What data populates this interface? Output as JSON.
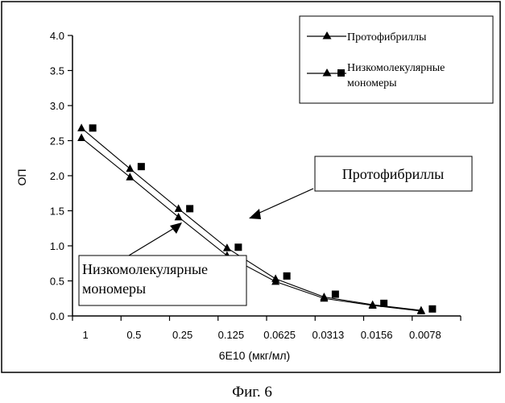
{
  "chart_data": {
    "type": "line",
    "xlabel": "6E10 (мкг/мл)",
    "ylabel": "ОП",
    "categories": [
      "1",
      "0.5",
      "0.25",
      "0.125",
      "0.0625",
      "0.0313",
      "0.0156",
      "0.0078"
    ],
    "ylim": [
      0,
      4.0
    ],
    "yticks": [
      "0.0",
      "0.5",
      "1.0",
      "1.5",
      "2.0",
      "2.5",
      "3.0",
      "3.5",
      "4.0"
    ],
    "grid": false,
    "legend_position": "top-right",
    "series": [
      {
        "name": "Протофибриллы",
        "marker": "triangle",
        "values_a": [
          2.68,
          2.1,
          1.53,
          0.97,
          0.53,
          0.27,
          0.16,
          0.08
        ],
        "values_b": [
          2.54,
          1.98,
          1.41,
          0.86,
          0.49,
          0.25,
          0.15,
          0.07
        ]
      },
      {
        "name": "Низкомолекулярные мономеры",
        "marker": "square",
        "values": [
          2.68,
          2.13,
          1.53,
          0.98,
          0.57,
          0.31,
          0.18,
          0.1
        ]
      }
    ],
    "callouts": [
      {
        "text": [
          "Протофибриллы"
        ]
      },
      {
        "text": [
          "Низкомолекулярные",
          "мономеры"
        ]
      }
    ]
  },
  "legend": {
    "items": [
      {
        "label_lines": [
          "Протофибриллы"
        ]
      },
      {
        "label_lines": [
          "Низкомолекулярные",
          "мономеры"
        ]
      }
    ]
  },
  "caption": "Фиг. 6"
}
